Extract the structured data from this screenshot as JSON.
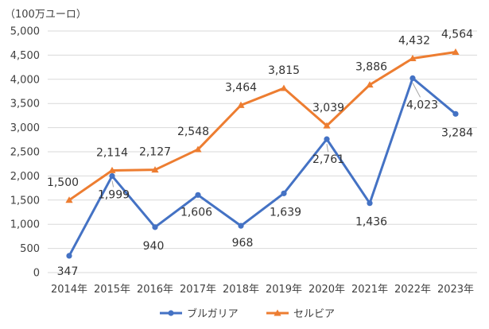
{
  "chart_data": {
    "type": "line",
    "unit_label": "（100万ユーロ）",
    "categories": [
      "2014年",
      "2015年",
      "2016年",
      "2017年",
      "2018年",
      "2019年",
      "2020年",
      "2021年",
      "2022年",
      "2023年"
    ],
    "series": [
      {
        "name": "ブルガリア",
        "color": "#4472c4",
        "marker": "circle",
        "values": [
          347,
          1999,
          940,
          1606,
          968,
          1639,
          2761,
          1436,
          4023,
          3284
        ],
        "labels": [
          "347",
          "1,999",
          "940",
          "1,606",
          "968",
          "1,639",
          "2,761",
          "1,436",
          "4,023",
          "3,284"
        ]
      },
      {
        "name": "セルビア",
        "color": "#ed7d31",
        "marker": "triangle",
        "values": [
          1500,
          2114,
          2127,
          2548,
          3464,
          3815,
          3039,
          3886,
          4432,
          4564
        ],
        "labels": [
          "1,500",
          "2,114",
          "2,127",
          "2,548",
          "3,464",
          "3,815",
          "3,039",
          "3,886",
          "4,432",
          "4,564"
        ]
      }
    ],
    "ylim": [
      0,
      5000
    ],
    "yticks": [
      0,
      500,
      1000,
      1500,
      2000,
      2500,
      3000,
      3500,
      4000,
      4500,
      5000
    ],
    "ytick_labels": [
      "0",
      "500",
      "1,000",
      "1,500",
      "2,000",
      "2,500",
      "3,000",
      "3,500",
      "4,000",
      "4,500",
      "5,000"
    ],
    "grid": true,
    "legend_position": "bottom"
  }
}
